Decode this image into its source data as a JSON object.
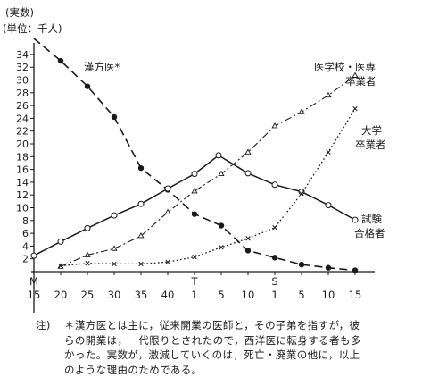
{
  "chart_data": {
    "type": "line",
    "ylabel": "(実数)",
    "yunit": "(単位：千人)",
    "ylim": [
      0,
      36
    ],
    "yticks": [
      2,
      4,
      6,
      8,
      10,
      12,
      14,
      16,
      18,
      20,
      22,
      24,
      26,
      28,
      30,
      32,
      34
    ],
    "era_labels": [
      {
        "x": 15,
        "text": "M"
      },
      {
        "x": 45,
        "text": "T"
      },
      {
        "x": 60,
        "text": "S"
      }
    ],
    "xticks": [
      {
        "x": 15,
        "text": "15"
      },
      {
        "x": 20,
        "text": "20"
      },
      {
        "x": 25,
        "text": "25"
      },
      {
        "x": 30,
        "text": "30"
      },
      {
        "x": 35,
        "text": "35"
      },
      {
        "x": 40,
        "text": "40"
      },
      {
        "x": 45,
        "text": "1"
      },
      {
        "x": 50,
        "text": "5"
      },
      {
        "x": 55,
        "text": "10"
      },
      {
        "x": 60,
        "text": "1"
      },
      {
        "x": 65,
        "text": "5"
      },
      {
        "x": 70,
        "text": "10"
      },
      {
        "x": 75,
        "text": "15"
      }
    ],
    "series": [
      {
        "name": "漢方医*",
        "style": "dashed",
        "marker": "filled-circle",
        "points": [
          [
            15,
            36.5
          ],
          [
            20,
            33
          ],
          [
            25,
            29
          ],
          [
            30,
            24.2
          ],
          [
            35,
            16.2
          ],
          [
            40,
            12.8
          ],
          [
            45,
            9
          ],
          [
            50,
            7.2
          ],
          [
            55,
            3.3
          ],
          [
            60,
            2.2
          ],
          [
            65,
            1.1
          ],
          [
            70,
            0.6
          ],
          [
            75,
            0.2
          ]
        ]
      },
      {
        "name": "試験合格者",
        "style": "solid",
        "marker": "open-circle",
        "points": [
          [
            15,
            2.5
          ],
          [
            20,
            4.7
          ],
          [
            25,
            6.8
          ],
          [
            30,
            8.8
          ],
          [
            35,
            10.6
          ],
          [
            40,
            13
          ],
          [
            45,
            15.3
          ],
          [
            49.5,
            18.2
          ],
          [
            55,
            15.4
          ],
          [
            60,
            13.6
          ],
          [
            65,
            12.5
          ],
          [
            70,
            10.4
          ],
          [
            75,
            8.1
          ]
        ]
      },
      {
        "name": "医学校・医専卒業者",
        "style": "dash-dot",
        "marker": "open-triangle",
        "points": [
          [
            20,
            0.8
          ],
          [
            25,
            2.6
          ],
          [
            30,
            3.6
          ],
          [
            35,
            5.6
          ],
          [
            40,
            9.3
          ],
          [
            45,
            12.6
          ],
          [
            50,
            15.3
          ],
          [
            55,
            18.7
          ],
          [
            60,
            22.8
          ],
          [
            65,
            25
          ],
          [
            70,
            27.6
          ],
          [
            75,
            30.7
          ]
        ]
      },
      {
        "name": "大学卒業者",
        "style": "dotted",
        "marker": "cross",
        "points": [
          [
            20,
            0.9
          ],
          [
            25,
            1.3
          ],
          [
            30,
            1.2
          ],
          [
            35,
            1.2
          ],
          [
            40,
            1.5
          ],
          [
            45,
            2.3
          ],
          [
            50,
            3.8
          ],
          [
            55,
            5.2
          ],
          [
            60,
            6.9
          ],
          [
            65,
            12.2
          ],
          [
            70,
            18.7
          ],
          [
            75,
            25.5
          ]
        ]
      }
    ],
    "labels": {
      "kampo": "漢方医*",
      "igakko_1": "医学校・医専",
      "igakko_2": "卒業者",
      "daigaku_1": "大学",
      "daigaku_2": "卒業者",
      "shiken_1": "試験",
      "shiken_2": "合格者"
    }
  },
  "footnote": {
    "label": "注)",
    "lines": [
      "＊漢方医とは主に，従来開業の医師と，その子弟を指すが，彼",
      "らの開業は，一代限りとされたので，西洋医に転身する者も多",
      "かった。実数が，激減していくのは，死亡・廃業の他に，以上",
      "のような理由のためである。"
    ]
  }
}
